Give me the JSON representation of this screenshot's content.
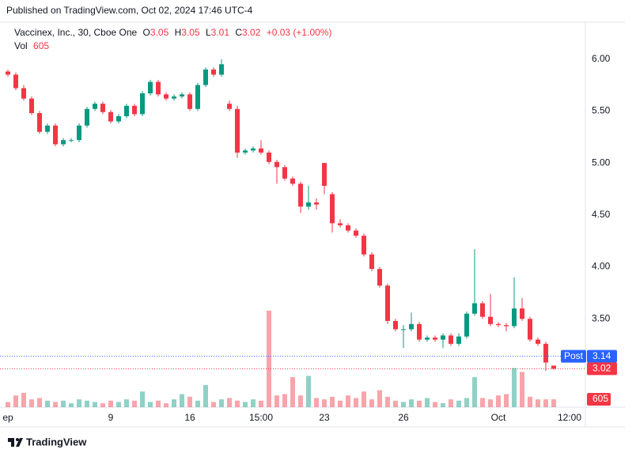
{
  "chart_data": {
    "type": "candlestick",
    "publisher": "Published on TradingView.com, Oct 02, 2024 17:46 UTC-4",
    "title": "Vaccinex, Inc., 30, Cboe One",
    "ohlc_letters": [
      "O",
      "H",
      "L",
      "C"
    ],
    "change": "+0.03 (+1.00%)",
    "volume_label": "Vol",
    "post_label": "Post",
    "post_price": 3.14,
    "brand": "TradingView",
    "up_color": "#089981",
    "down_color": "#f23645",
    "open": [
      5.88,
      5.85,
      5.72,
      5.62,
      5.48,
      5.3,
      5.36,
      5.18,
      5.22,
      5.22,
      5.36,
      5.52,
      5.57,
      5.49,
      5.4,
      5.45,
      5.55,
      5.47,
      5.67,
      5.78,
      5.66,
      5.62,
      5.64,
      5.66,
      5.52,
      5.75,
      5.9,
      5.85,
      5.57,
      5.52,
      5.1,
      5.12,
      5.14,
      5.1,
      5.01,
      4.96,
      4.85,
      4.8,
      4.58,
      4.62,
      5.0,
      4.7,
      4.42,
      4.4,
      4.35,
      4.3,
      4.12,
      3.98,
      3.82,
      3.48,
      3.4,
      3.4,
      3.45,
      3.3,
      3.32,
      3.3,
      3.34,
      3.26,
      3.33,
      3.55,
      3.65,
      3.52,
      3.45,
      3.44,
      3.43,
      3.6,
      3.5,
      3.3,
      3.26,
      3.05
    ],
    "high": [
      5.9,
      5.87,
      5.75,
      5.64,
      5.5,
      5.38,
      5.38,
      5.24,
      5.24,
      5.38,
      5.54,
      5.59,
      5.59,
      5.51,
      5.47,
      5.57,
      5.57,
      5.69,
      5.8,
      5.8,
      5.68,
      5.66,
      5.68,
      5.68,
      5.77,
      5.92,
      5.92,
      6.0,
      5.6,
      5.55,
      5.14,
      5.16,
      5.22,
      5.12,
      5.03,
      4.98,
      4.87,
      4.82,
      4.78,
      4.66,
      5.0,
      4.72,
      4.46,
      4.42,
      4.37,
      4.32,
      4.14,
      4.0,
      3.84,
      3.5,
      3.44,
      3.56,
      3.47,
      3.34,
      3.34,
      3.36,
      3.36,
      3.36,
      3.57,
      4.17,
      3.67,
      3.74,
      3.47,
      3.46,
      3.9,
      3.7,
      3.52,
      3.32,
      3.28,
      3.05
    ],
    "low": [
      5.83,
      5.7,
      5.6,
      5.46,
      5.28,
      5.28,
      5.16,
      5.16,
      5.2,
      5.2,
      5.34,
      5.5,
      5.47,
      5.38,
      5.38,
      5.43,
      5.45,
      5.45,
      5.65,
      5.64,
      5.6,
      5.6,
      5.62,
      5.5,
      5.5,
      5.73,
      5.83,
      5.83,
      5.5,
      5.05,
      5.08,
      5.1,
      5.08,
      4.99,
      4.8,
      4.83,
      4.78,
      4.52,
      4.55,
      4.55,
      4.7,
      4.33,
      4.38,
      4.33,
      4.28,
      4.1,
      3.96,
      3.8,
      3.45,
      3.38,
      3.22,
      3.38,
      3.28,
      3.28,
      3.28,
      3.22,
      3.24,
      3.24,
      3.31,
      3.53,
      3.5,
      3.43,
      3.42,
      3.38,
      3.41,
      3.48,
      3.28,
      3.24,
      3.0,
      3.01
    ],
    "close": [
      5.85,
      5.72,
      5.62,
      5.48,
      5.3,
      5.36,
      5.18,
      5.22,
      5.22,
      5.36,
      5.52,
      5.57,
      5.49,
      5.4,
      5.45,
      5.55,
      5.47,
      5.67,
      5.78,
      5.66,
      5.62,
      5.64,
      5.66,
      5.52,
      5.75,
      5.9,
      5.85,
      5.95,
      5.52,
      5.1,
      5.12,
      5.14,
      5.1,
      5.01,
      4.96,
      4.85,
      4.8,
      4.58,
      4.62,
      4.6,
      4.78,
      4.42,
      4.4,
      4.35,
      4.3,
      4.12,
      3.98,
      3.82,
      3.48,
      3.4,
      3.4,
      3.45,
      3.3,
      3.32,
      3.3,
      3.34,
      3.26,
      3.33,
      3.55,
      3.65,
      3.52,
      3.45,
      3.44,
      3.43,
      3.6,
      3.5,
      3.3,
      3.26,
      3.08,
      3.02
    ],
    "volume": [
      400,
      900,
      1100,
      600,
      700,
      500,
      400,
      500,
      300,
      600,
      500,
      400,
      300,
      500,
      400,
      600,
      500,
      1200,
      400,
      500,
      300,
      600,
      1000,
      800,
      500,
      1700,
      400,
      600,
      700,
      500,
      400,
      600,
      500,
      7400,
      900,
      1000,
      2300,
      900,
      2400,
      700,
      600,
      800,
      500,
      900,
      700,
      1200,
      600,
      1300,
      800,
      500,
      400,
      600,
      500,
      700,
      400,
      300,
      600,
      500,
      700,
      2300,
      700,
      600,
      900,
      1000,
      3000,
      2700,
      800,
      600,
      600,
      605
    ],
    "volume_lim": [
      0,
      10000
    ],
    "xlim": [
      -1,
      73
    ],
    "xticks": [
      {
        "value": 0,
        "label": "ep"
      },
      {
        "value": 13,
        "label": "9"
      },
      {
        "value": 23,
        "label": "16"
      },
      {
        "value": 32,
        "label": "15:00"
      },
      {
        "value": 40,
        "label": "23"
      },
      {
        "value": 50,
        "label": "26"
      },
      {
        "value": 62,
        "label": "Oct"
      },
      {
        "value": 71,
        "label": "12:00"
      }
    ],
    "ylim": [
      2.65,
      6.34
    ],
    "yticks": [
      {
        "value": 3.5,
        "label": "3.50"
      },
      {
        "value": 4,
        "label": "4.00"
      },
      {
        "value": 4.5,
        "label": "4.50"
      },
      {
        "value": 5,
        "label": "5.00"
      },
      {
        "value": 5.5,
        "label": "5.50"
      },
      {
        "value": 6,
        "label": "6.00"
      }
    ],
    "grid": false
  }
}
